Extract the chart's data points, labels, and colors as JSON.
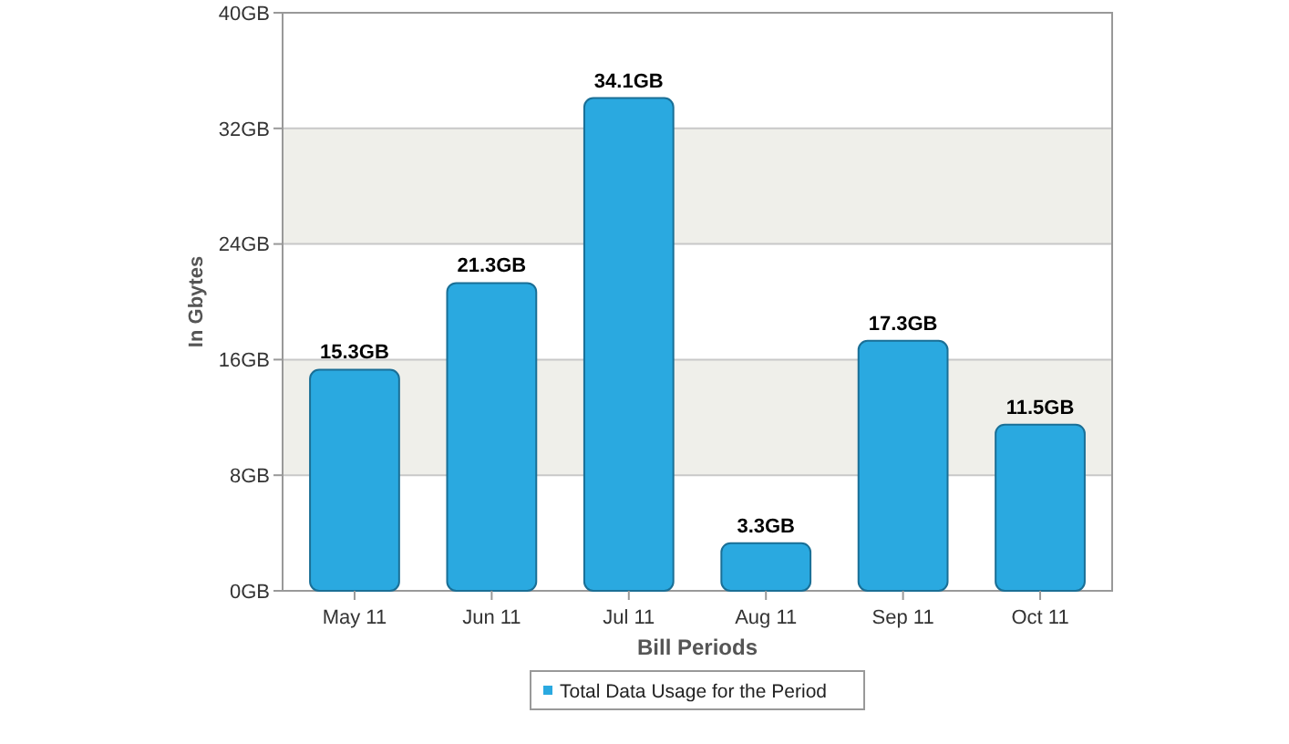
{
  "chart_data": {
    "type": "bar",
    "xlabel": "Bill Periods",
    "ylabel": "In Gbytes",
    "categories": [
      "May 11",
      "Jun 11",
      "Jul 11",
      "Aug 11",
      "Sep 11",
      "Oct 11"
    ],
    "series": [
      {
        "name": "Total Data Usage for the Period",
        "color": "#2aa9e0",
        "values": [
          15.3,
          21.3,
          34.1,
          3.3,
          17.3,
          11.5
        ],
        "value_labels": [
          "15.3GB",
          "21.3GB",
          "34.1GB",
          "3.3GB",
          "17.3GB",
          "11.5GB"
        ]
      }
    ],
    "ylim": [
      0,
      40
    ],
    "yticks": [
      {
        "value": 0,
        "label": "0GB"
      },
      {
        "value": 8,
        "label": "8GB"
      },
      {
        "value": 16,
        "label": "16GB"
      },
      {
        "value": 24,
        "label": "24GB"
      },
      {
        "value": 32,
        "label": "32GB"
      },
      {
        "value": 40,
        "label": "40GB"
      }
    ],
    "grid": true,
    "legend": "bottom"
  }
}
